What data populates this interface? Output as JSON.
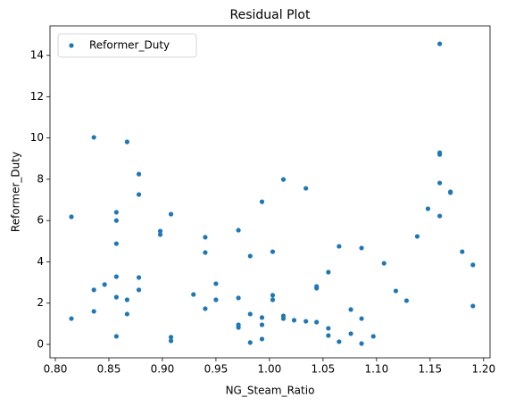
{
  "chart_data": {
    "type": "scatter",
    "title": "Residual Plot",
    "x_label": "NG_Steam_Ratio",
    "y_label": "Reformer_Duty",
    "legend": "upper left",
    "grid": false,
    "xlim": [
      0.795,
      1.206
    ],
    "ylim": [
      -0.65,
      15.43
    ],
    "xticks": [
      {
        "value": 0.8,
        "label": "0.80"
      },
      {
        "value": 0.85,
        "label": "0.85"
      },
      {
        "value": 0.9,
        "label": "0.90"
      },
      {
        "value": 0.95,
        "label": "0.95"
      },
      {
        "value": 1.0,
        "label": "1.00"
      },
      {
        "value": 1.05,
        "label": "1.05"
      },
      {
        "value": 1.1,
        "label": "1.10"
      },
      {
        "value": 1.15,
        "label": "1.15"
      },
      {
        "value": 1.2,
        "label": "1.20"
      }
    ],
    "yticks": [
      0,
      2,
      4,
      6,
      8,
      10,
      12,
      14
    ],
    "series": [
      {
        "name": "Reformer_Duty",
        "color": "#1f77b4",
        "x": [
          0.815,
          0.815,
          0.836,
          0.836,
          0.836,
          0.846,
          0.857,
          0.857,
          0.857,
          0.857,
          0.857,
          0.857,
          0.867,
          0.867,
          0.867,
          0.878,
          0.878,
          0.878,
          0.878,
          0.898,
          0.898,
          0.908,
          0.908,
          0.908,
          0.929,
          0.94,
          0.94,
          0.94,
          0.95,
          0.95,
          0.971,
          0.971,
          0.971,
          0.971,
          0.982,
          0.982,
          0.982,
          0.993,
          0.993,
          0.993,
          0.993,
          1.003,
          1.003,
          1.003,
          1.013,
          1.013,
          1.013,
          1.023,
          1.034,
          1.034,
          1.044,
          1.044,
          1.044,
          1.055,
          1.055,
          1.055,
          1.065,
          1.065,
          1.076,
          1.076,
          1.086,
          1.086,
          1.086,
          1.097,
          1.107,
          1.118,
          1.128,
          1.138,
          1.148,
          1.159,
          1.159,
          1.159,
          1.159,
          1.159,
          1.169,
          1.169,
          1.18,
          1.19,
          1.19
        ],
        "values": [
          6.18,
          1.25,
          10.03,
          2.64,
          1.6,
          2.9,
          6.4,
          6.0,
          4.88,
          3.28,
          2.29,
          0.39,
          9.81,
          2.16,
          1.47,
          8.25,
          7.26,
          3.24,
          2.64,
          5.49,
          5.32,
          6.31,
          0.35,
          0.17,
          2.42,
          5.19,
          4.45,
          1.73,
          2.94,
          2.16,
          5.53,
          2.25,
          0.95,
          0.82,
          4.28,
          1.47,
          0.09,
          6.91,
          1.3,
          0.95,
          0.26,
          4.49,
          2.38,
          2.16,
          7.99,
          1.38,
          1.25,
          1.17,
          7.56,
          1.12,
          1.08,
          2.81,
          2.72,
          3.5,
          0.78,
          0.43,
          4.75,
          0.13,
          1.69,
          0.52,
          4.67,
          1.25,
          0.04,
          0.39,
          3.93,
          2.59,
          2.12,
          5.23,
          6.57,
          14.56,
          9.29,
          9.2,
          7.82,
          6.22,
          7.39,
          7.35,
          4.49,
          3.85,
          1.86
        ]
      }
    ]
  }
}
